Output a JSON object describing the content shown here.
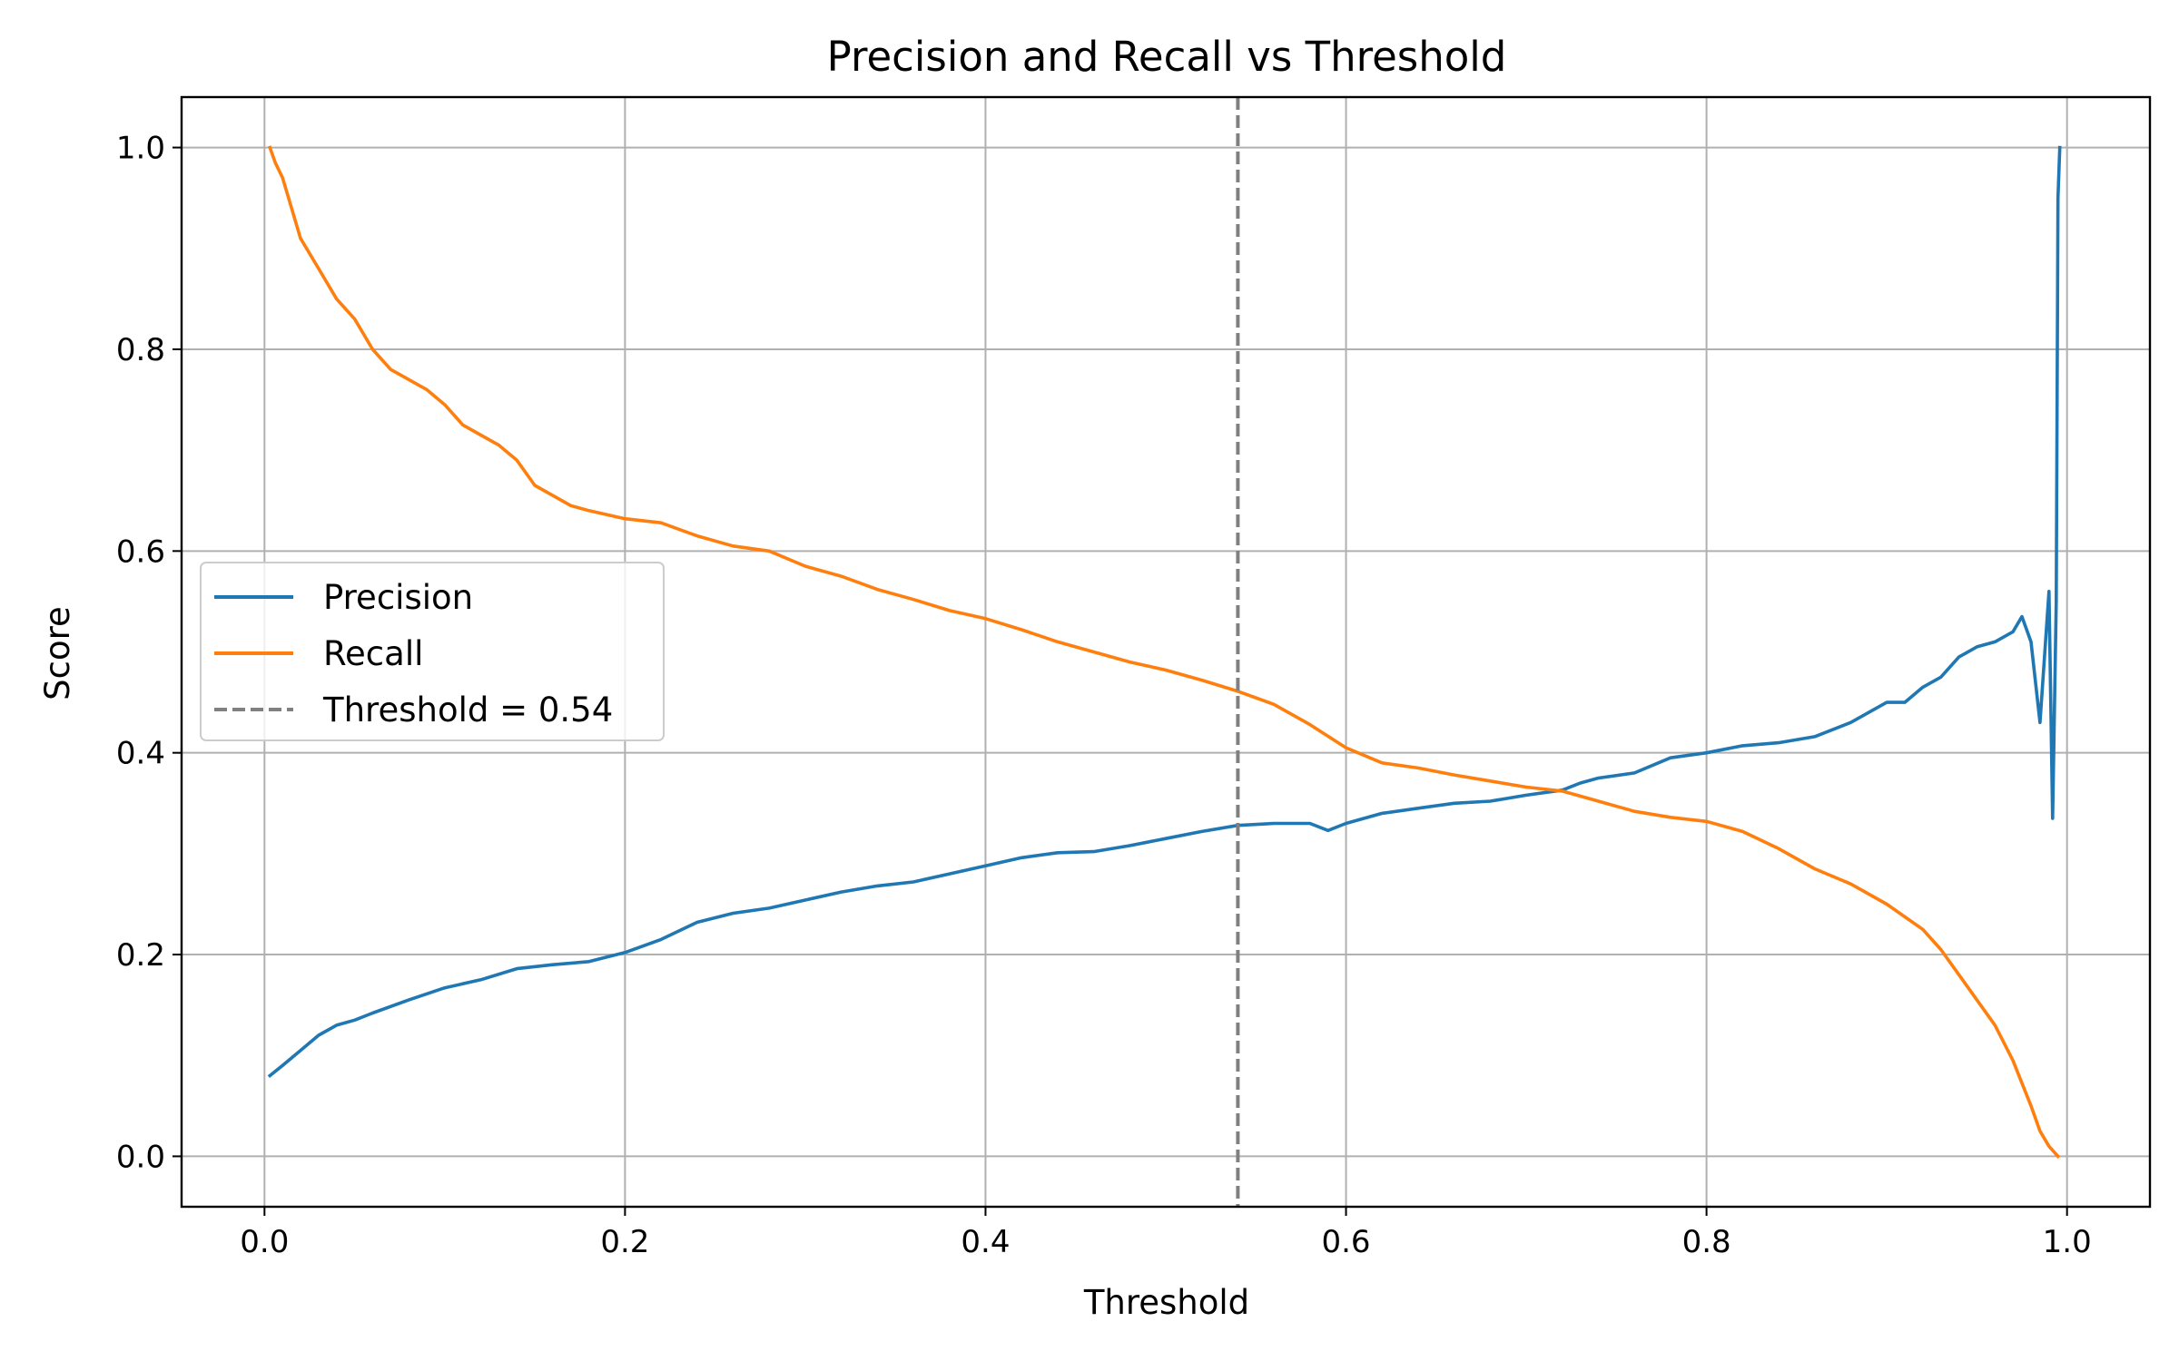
{
  "chart_data": {
    "type": "line",
    "title": "Precision and Recall vs Threshold",
    "xlabel": "Threshold",
    "ylabel": "Score",
    "xlim": [
      -0.046,
      1.046
    ],
    "ylim": [
      -0.05,
      1.05
    ],
    "xticks": [
      "0.0",
      "0.2",
      "0.4",
      "0.6",
      "0.8",
      "1.0"
    ],
    "yticks": [
      "0.0",
      "0.2",
      "0.4",
      "0.6",
      "0.8",
      "1.0"
    ],
    "grid": true,
    "legend_position": "center-left",
    "series": [
      {
        "name": "Precision",
        "color": "#1f77b4",
        "style": "solid",
        "x": [
          0.003,
          0.01,
          0.02,
          0.03,
          0.04,
          0.05,
          0.06,
          0.08,
          0.1,
          0.12,
          0.14,
          0.16,
          0.18,
          0.2,
          0.22,
          0.24,
          0.26,
          0.28,
          0.3,
          0.32,
          0.34,
          0.36,
          0.38,
          0.4,
          0.42,
          0.44,
          0.46,
          0.48,
          0.5,
          0.52,
          0.54,
          0.56,
          0.58,
          0.59,
          0.6,
          0.62,
          0.64,
          0.66,
          0.68,
          0.7,
          0.72,
          0.73,
          0.74,
          0.76,
          0.78,
          0.8,
          0.82,
          0.84,
          0.86,
          0.88,
          0.9,
          0.91,
          0.92,
          0.93,
          0.94,
          0.95,
          0.96,
          0.97,
          0.975,
          0.98,
          0.985,
          0.99,
          0.992,
          0.994,
          0.995,
          0.996
        ],
        "y": [
          0.08,
          0.09,
          0.105,
          0.12,
          0.13,
          0.135,
          0.142,
          0.155,
          0.167,
          0.175,
          0.186,
          0.19,
          0.193,
          0.202,
          0.215,
          0.232,
          0.241,
          0.246,
          0.254,
          0.262,
          0.268,
          0.272,
          0.28,
          0.288,
          0.296,
          0.301,
          0.302,
          0.308,
          0.315,
          0.322,
          0.328,
          0.33,
          0.33,
          0.323,
          0.33,
          0.34,
          0.345,
          0.35,
          0.352,
          0.358,
          0.363,
          0.37,
          0.375,
          0.38,
          0.395,
          0.4,
          0.407,
          0.41,
          0.416,
          0.43,
          0.45,
          0.45,
          0.465,
          0.475,
          0.495,
          0.505,
          0.51,
          0.52,
          0.535,
          0.51,
          0.43,
          0.56,
          0.335,
          0.55,
          0.95,
          1.0
        ]
      },
      {
        "name": "Recall",
        "color": "#ff7f0e",
        "style": "solid",
        "x": [
          0.003,
          0.006,
          0.01,
          0.015,
          0.02,
          0.03,
          0.04,
          0.05,
          0.06,
          0.07,
          0.08,
          0.09,
          0.1,
          0.11,
          0.12,
          0.13,
          0.14,
          0.15,
          0.16,
          0.17,
          0.18,
          0.2,
          0.22,
          0.24,
          0.26,
          0.28,
          0.3,
          0.32,
          0.34,
          0.36,
          0.38,
          0.4,
          0.42,
          0.44,
          0.46,
          0.48,
          0.5,
          0.52,
          0.54,
          0.56,
          0.58,
          0.6,
          0.62,
          0.64,
          0.66,
          0.68,
          0.7,
          0.72,
          0.74,
          0.76,
          0.78,
          0.8,
          0.82,
          0.84,
          0.86,
          0.88,
          0.9,
          0.92,
          0.93,
          0.94,
          0.95,
          0.96,
          0.97,
          0.98,
          0.985,
          0.99,
          0.995
        ],
        "y": [
          1.0,
          0.985,
          0.97,
          0.94,
          0.91,
          0.88,
          0.85,
          0.83,
          0.8,
          0.78,
          0.77,
          0.76,
          0.745,
          0.725,
          0.715,
          0.705,
          0.69,
          0.665,
          0.655,
          0.645,
          0.64,
          0.632,
          0.628,
          0.615,
          0.605,
          0.6,
          0.585,
          0.575,
          0.562,
          0.552,
          0.541,
          0.533,
          0.522,
          0.51,
          0.5,
          0.49,
          0.482,
          0.472,
          0.461,
          0.448,
          0.428,
          0.405,
          0.39,
          0.385,
          0.378,
          0.372,
          0.366,
          0.362,
          0.352,
          0.342,
          0.336,
          0.332,
          0.322,
          0.305,
          0.285,
          0.27,
          0.25,
          0.225,
          0.205,
          0.18,
          0.155,
          0.13,
          0.095,
          0.05,
          0.025,
          0.01,
          0.0
        ]
      }
    ],
    "vline": {
      "name": "Threshold = 0.54",
      "x": 0.54,
      "color": "#808080",
      "style": "dashed"
    }
  }
}
